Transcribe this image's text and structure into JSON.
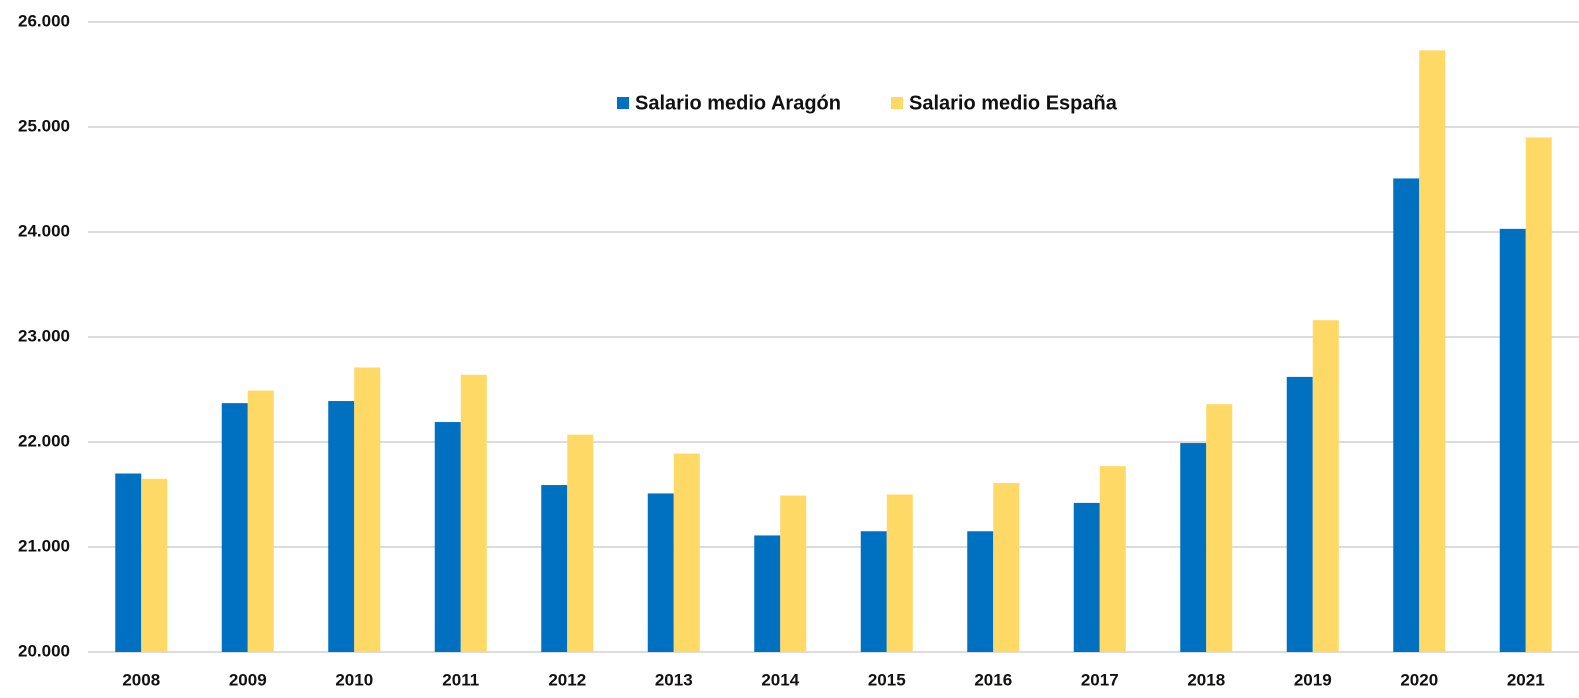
{
  "chart_data": {
    "type": "bar",
    "categories": [
      "2008",
      "2009",
      "2010",
      "2011",
      "2012",
      "2013",
      "2014",
      "2015",
      "2016",
      "2017",
      "2018",
      "2019",
      "2020",
      "2021"
    ],
    "series": [
      {
        "name": "Salario medio Aragón",
        "color": "#0070c0",
        "values": [
          21700,
          22370,
          22390,
          22190,
          21590,
          21510,
          21110,
          21150,
          21150,
          21420,
          21990,
          22620,
          24510,
          24030
        ]
      },
      {
        "name": "Salario medio España",
        "color": "#ffd966",
        "values": [
          21650,
          22490,
          22710,
          22640,
          22070,
          21890,
          21490,
          21500,
          21610,
          21770,
          22360,
          23160,
          25730,
          24900
        ]
      }
    ],
    "ylim": [
      20000,
      26000
    ],
    "yticks": [
      {
        "value": 20000,
        "label": "20.000"
      },
      {
        "value": 21000,
        "label": "21.000"
      },
      {
        "value": 22000,
        "label": "22.000"
      },
      {
        "value": 23000,
        "label": "23.000"
      },
      {
        "value": 24000,
        "label": "24.000"
      },
      {
        "value": 25000,
        "label": "25.000"
      },
      {
        "value": 26000,
        "label": "26.000"
      }
    ],
    "grid": true,
    "legend": "top"
  }
}
